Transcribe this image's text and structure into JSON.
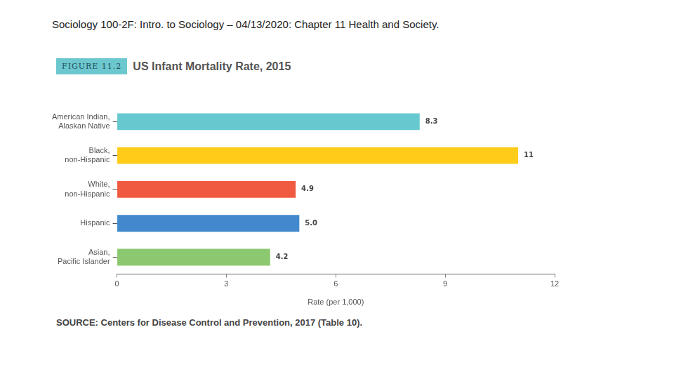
{
  "slide_title": "Sociology 100-2F: Intro. to Sociology – 04/13/2020: Chapter 11 Health and Society.",
  "chart_data": {
    "type": "bar",
    "orientation": "horizontal",
    "figure_label": "FIGURE 11.2",
    "title": "US Infant Mortality Rate, 2015",
    "categories": [
      [
        "American Indian,",
        "Alaskan Native"
      ],
      [
        "Black,",
        "non-Hispanic"
      ],
      [
        "White,",
        "non-Hispanic"
      ],
      "Hispanic",
      [
        "Asian,",
        "Pacific Islander"
      ]
    ],
    "values": [
      8.3,
      11,
      4.9,
      5.0,
      4.2
    ],
    "value_labels": [
      "8.3",
      "11",
      "4.9",
      "5.0",
      "4.2"
    ],
    "data_labels": true,
    "colors": [
      "#67c9d0",
      "#ffcc1a",
      "#f05a40",
      "#4189cc",
      "#8cc870"
    ],
    "x_label": "Rate (per 1,000)",
    "xlim": [
      0,
      12
    ],
    "xticks": [
      0,
      3,
      6,
      9,
      12
    ],
    "grid": false,
    "legend": "none",
    "source": "SOURCE: Centers for Disease Control and Prevention, 2017 (Table 10)."
  }
}
